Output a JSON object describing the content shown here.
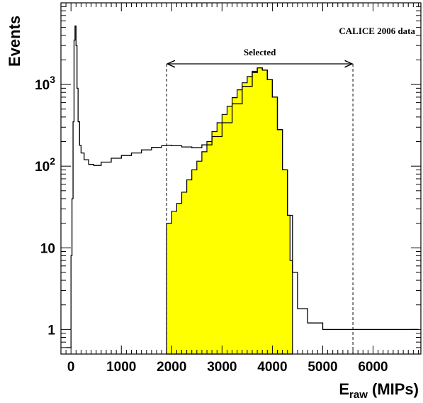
{
  "chart_data": {
    "type": "histogram",
    "annotation": "CALICE 2006 data",
    "selection": {
      "label": "Selected",
      "range": [
        1900,
        5600
      ]
    },
    "xlabel": {
      "main": "E",
      "sub": "raw",
      "rest": " (MIPs)"
    },
    "ylabel": "Events",
    "xlim": [
      -200,
      6950
    ],
    "ylim": [
      0.5,
      10000
    ],
    "y_scale": "log",
    "grid": false,
    "x_ticks": [
      0,
      1000,
      2000,
      3000,
      4000,
      5000,
      6000
    ],
    "x_tick_labels": [
      "0",
      "1000",
      "2000",
      "3000",
      "4000",
      "5000",
      "6000"
    ],
    "y_ticks": [
      1,
      10,
      100,
      1000
    ],
    "y_tick_labels": [
      {
        "base": "1",
        "exp": ""
      },
      {
        "base": "10",
        "exp": ""
      },
      {
        "base": "10",
        "exp": "2"
      },
      {
        "base": "10",
        "exp": "3"
      }
    ],
    "series": [
      {
        "style": "line",
        "color": "#000000",
        "points": [
          [
            -100,
            0.6
          ],
          [
            0,
            8
          ],
          [
            20,
            40
          ],
          [
            40,
            350
          ],
          [
            60,
            3500
          ],
          [
            80,
            5200
          ],
          [
            100,
            3000
          ],
          [
            120,
            900
          ],
          [
            140,
            350
          ],
          [
            170,
            180
          ],
          [
            200,
            145
          ],
          [
            260,
            120
          ],
          [
            350,
            105
          ],
          [
            450,
            102
          ],
          [
            600,
            112
          ],
          [
            800,
            125
          ],
          [
            1000,
            135
          ],
          [
            1200,
            145
          ],
          [
            1400,
            158
          ],
          [
            1600,
            170
          ],
          [
            1800,
            178
          ],
          [
            1900,
            180
          ],
          [
            2000,
            178
          ],
          [
            2200,
            172
          ],
          [
            2400,
            168
          ],
          [
            2600,
            182
          ],
          [
            2800,
            230
          ],
          [
            3000,
            340
          ],
          [
            3200,
            580
          ],
          [
            3400,
            950
          ],
          [
            3600,
            1400
          ],
          [
            3700,
            1600
          ],
          [
            3800,
            1500
          ],
          [
            3900,
            1150
          ],
          [
            4000,
            700
          ],
          [
            4100,
            280
          ],
          [
            4200,
            90
          ],
          [
            4300,
            25
          ],
          [
            4400,
            5
          ],
          [
            4500,
            1.8
          ],
          [
            4700,
            1.2
          ],
          [
            5000,
            1
          ],
          [
            5600,
            1
          ],
          [
            6200,
            1
          ],
          [
            6900,
            1
          ]
        ]
      },
      {
        "style": "filled",
        "color": "#ffff00",
        "points": [
          [
            1900,
            20
          ],
          [
            2000,
            28
          ],
          [
            2100,
            35
          ],
          [
            2200,
            48
          ],
          [
            2300,
            68
          ],
          [
            2400,
            90
          ],
          [
            2500,
            115
          ],
          [
            2600,
            150
          ],
          [
            2700,
            200
          ],
          [
            2800,
            265
          ],
          [
            2900,
            340
          ],
          [
            3000,
            430
          ],
          [
            3100,
            540
          ],
          [
            3200,
            690
          ],
          [
            3300,
            860
          ],
          [
            3400,
            1050
          ],
          [
            3500,
            1250
          ],
          [
            3600,
            1450
          ],
          [
            3700,
            1600
          ],
          [
            3800,
            1500
          ],
          [
            3900,
            1150
          ],
          [
            4000,
            700
          ],
          [
            4100,
            280
          ],
          [
            4200,
            90
          ],
          [
            4300,
            25
          ],
          [
            4350,
            7
          ],
          [
            4400,
            2
          ]
        ]
      }
    ]
  }
}
